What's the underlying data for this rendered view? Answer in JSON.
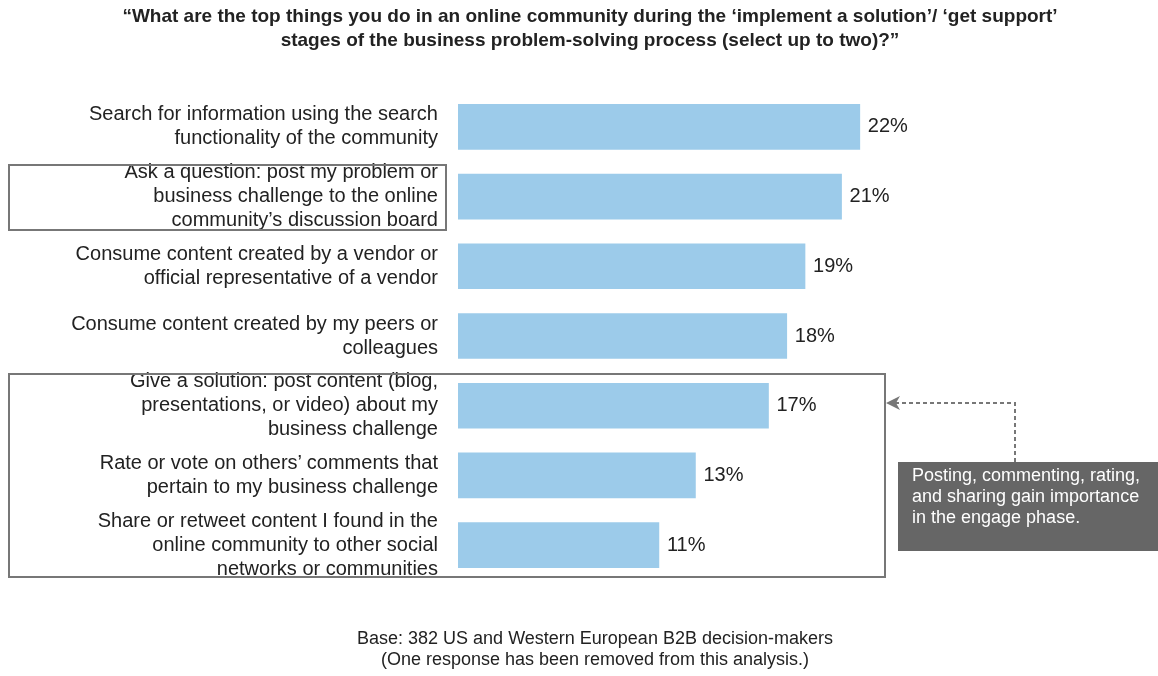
{
  "chart_data": {
    "type": "bar",
    "orientation": "horizontal",
    "title": "“What are the top things you do in an online community during the ‘implement a solution’/ ‘get support’ stages of the business problem-solving process (select up to two)?”",
    "categories": [
      "Search for information using the search functionality of the community",
      "Ask a question: post my problem or business challenge to the online community’s discussion board",
      "Consume content created by a vendor or official representative of a vendor",
      "Consume content created by my peers or colleagues",
      "Give a solution: post content (blog, presentations, or video) about my business challenge",
      "Rate or vote on others’ comments that pertain to my business challenge",
      "Share or retweet content I found in the online community to other social networks or communities"
    ],
    "values": [
      22,
      21,
      19,
      18,
      17,
      13,
      11
    ],
    "value_labels": [
      "22%",
      "21%",
      "19%",
      "18%",
      "17%",
      "13%",
      "11%"
    ],
    "color": "#9ccbea",
    "annotations": [
      "Posting, commenting, rating, and sharing gain importance in the engage phase.",
      "Base: 382 US and Western European B2B decision-makers",
      "(One response has been removed from this analysis.)"
    ]
  }
}
